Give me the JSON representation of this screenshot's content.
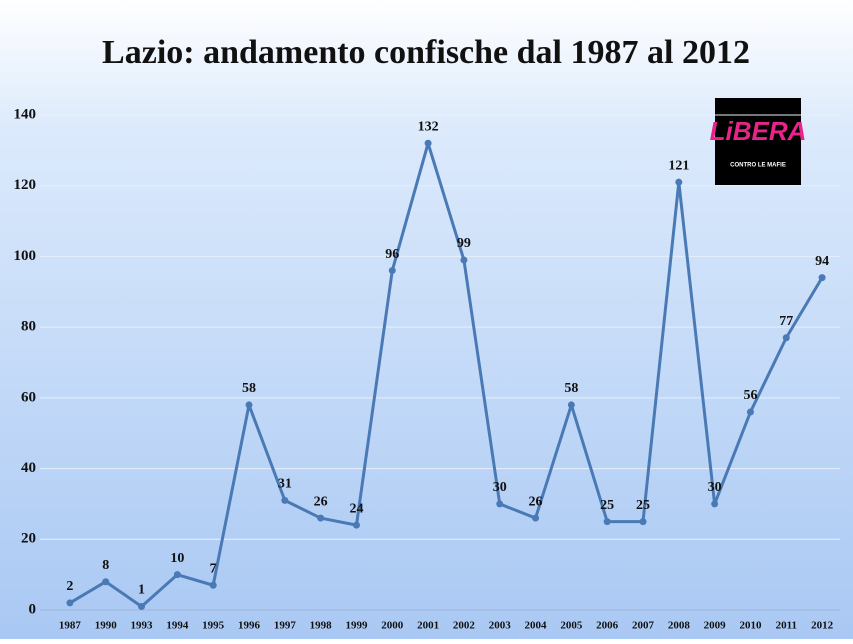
{
  "chart_data": {
    "type": "line",
    "title": "Lazio: andamento confische dal 1987 al 2012",
    "categories": [
      "1987",
      "1990",
      "1993",
      "1994",
      "1995",
      "1996",
      "1997",
      "1998",
      "1999",
      "2000",
      "2001",
      "2002",
      "2003",
      "2004",
      "2005",
      "2006",
      "2007",
      "2008",
      "2009",
      "2010",
      "2011",
      "2012"
    ],
    "values": [
      2,
      8,
      1,
      10,
      7,
      58,
      31,
      26,
      24,
      96,
      132,
      99,
      30,
      26,
      58,
      25,
      25,
      121,
      30,
      56,
      77,
      94
    ],
    "color": "#4a7ab5",
    "ylim": [
      0,
      140
    ],
    "yticks": [
      0,
      20,
      40,
      60,
      80,
      100,
      120,
      140
    ],
    "grid": true
  },
  "logo": {
    "name": "LiBERA",
    "tagline": "CONTRO LE MAFIE"
  }
}
